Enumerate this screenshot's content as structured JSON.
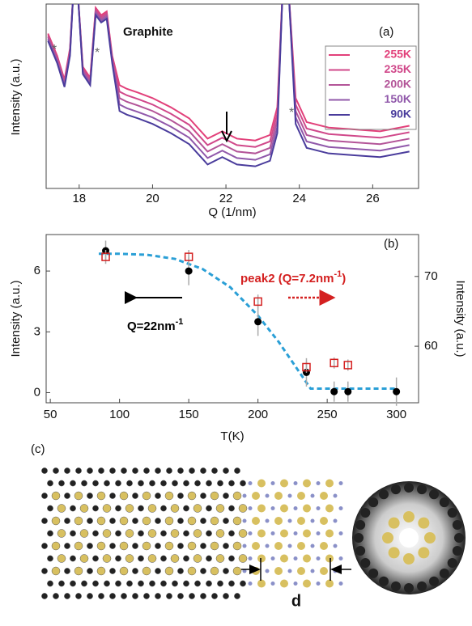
{
  "chart_data": [
    {
      "type": "line",
      "label": "(a)",
      "xlabel": "Q (1/nm)",
      "ylabel": "Intensity (a.u.)",
      "annotations": [
        "Graphite",
        "*",
        "*",
        "*"
      ],
      "xlim": [
        17.1,
        27.25
      ],
      "ylim": [
        0,
        100
      ],
      "xticks": [
        18,
        20,
        22,
        24,
        26
      ],
      "x": [
        17.15,
        17.4,
        17.6,
        17.75,
        17.85,
        17.95,
        18.1,
        18.3,
        18.45,
        18.6,
        18.75,
        18.9,
        19.1,
        19.3,
        19.6,
        20,
        20.5,
        21,
        21.5,
        21.9,
        22.3,
        22.8,
        23.2,
        23.4,
        23.55,
        23.7,
        23.9,
        24.2,
        24.8,
        25.5,
        26.2,
        27
      ],
      "series": [
        {
          "name": "255K",
          "color": "#e2407a",
          "values": [
            84,
            72,
            59,
            76,
            110,
            110,
            66,
            60,
            98,
            94,
            96,
            72,
            56,
            54,
            52,
            49,
            44,
            38,
            27,
            31,
            27,
            26,
            29,
            44,
            110,
            110,
            49,
            36,
            33,
            32,
            31,
            34
          ]
        },
        {
          "name": "235K",
          "color": "#d0488a",
          "values": [
            83,
            71,
            58,
            75,
            110,
            110,
            65,
            59,
            97,
            93,
            95,
            71,
            52.5,
            50.5,
            48.5,
            45.5,
            40.5,
            34.5,
            23.5,
            27.5,
            23.5,
            22.5,
            25.5,
            40.5,
            110,
            110,
            45.5,
            32.5,
            29.5,
            28.5,
            27.5,
            30.5
          ]
        },
        {
          "name": "200K",
          "color": "#b35498",
          "values": [
            82,
            70,
            57,
            74,
            110,
            110,
            64,
            58,
            96,
            92,
            94,
            70,
            49,
            47,
            45,
            42,
            37,
            31,
            20,
            24,
            20,
            19,
            22,
            37,
            110,
            110,
            42,
            29,
            26,
            25,
            24,
            27
          ]
        },
        {
          "name": "150K",
          "color": "#9058aa",
          "values": [
            81,
            69,
            56,
            73,
            110,
            110,
            63,
            57,
            95,
            91,
            93,
            69,
            45.5,
            43.5,
            41.5,
            38.5,
            33.5,
            27.5,
            16.5,
            20.5,
            16.5,
            15.5,
            18.5,
            33.5,
            110,
            110,
            38.5,
            25.5,
            22.5,
            21.5,
            20.5,
            23.5
          ]
        },
        {
          "name": "90K",
          "color": "#4a3c9c",
          "values": [
            80,
            68,
            55,
            72,
            110,
            110,
            62,
            56,
            94,
            90,
            92,
            68,
            42,
            40,
            38,
            35,
            30,
            24,
            13,
            17,
            13,
            12,
            15,
            30,
            110,
            110,
            35,
            22,
            19,
            18,
            17,
            20
          ]
        }
      ]
    },
    {
      "type": "scatter",
      "label": "(b)",
      "xlabel": "T(K)",
      "ylabel": "Intensity (a.u.)",
      "y2label": "Intensity (a.u.)",
      "xlim": [
        47,
        316
      ],
      "ylim": [
        -0.5,
        7.8
      ],
      "y2lim": [
        51.9,
        76
      ],
      "xticks": [
        50,
        100,
        150,
        200,
        250,
        300
      ],
      "yticks": [
        0,
        3,
        6
      ],
      "y2ticks": [
        60,
        70
      ],
      "series": [
        {
          "name": [
            "Q=22nm",
            "-1"
          ],
          "color": "#000000",
          "marker": "circle",
          "x": [
            90,
            150,
            200,
            235,
            255,
            265,
            300
          ],
          "values": [
            7.0,
            6.0,
            3.5,
            1.0,
            0.05,
            0.05,
            0.05
          ],
          "errors": [
            0.5,
            0.7,
            0.7,
            0.7,
            0.5,
            0.5,
            0.7
          ]
        },
        {
          "name": [
            "peak2 (Q=7.2nm",
            "-1",
            ")"
          ],
          "color": "#d42020",
          "marker": "square",
          "axis": "y2",
          "x": [
            90,
            150,
            200,
            235,
            255,
            265
          ],
          "values": [
            72.8,
            72.8,
            66.4,
            57.0,
            57.6,
            57.3
          ],
          "errors": [
            1,
            1,
            1,
            0.8,
            0.8,
            0.8
          ]
        }
      ],
      "fit": {
        "color": "#2a9fd6",
        "x": [
          85,
          100,
          120,
          140,
          160,
          180,
          200,
          215,
          230,
          238,
          250,
          270,
          300
        ],
        "values": [
          6.85,
          6.85,
          6.8,
          6.6,
          6.1,
          5.2,
          3.8,
          2.5,
          1.0,
          0.2,
          0.2,
          0.2,
          0.2
        ]
      }
    }
  ],
  "panel_c": {
    "label": "(c)",
    "dimension": "d"
  }
}
